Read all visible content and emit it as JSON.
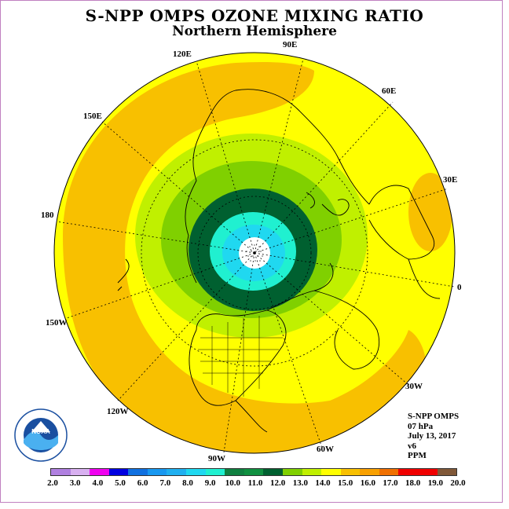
{
  "title": "S-NPP OMPS OZONE MIXING RATIO",
  "subtitle": "Northern Hemisphere",
  "longitude_labels": {
    "e120": "120E",
    "e90": "90E",
    "e60": "60E",
    "e30": "30E",
    "zero": "0",
    "w30": "30W",
    "w60": "60W",
    "w90": "90W",
    "w120": "120W",
    "w150": "150W",
    "d180": "180",
    "e150": "150E"
  },
  "info": {
    "instrument": "S-NPP OMPS",
    "level": "07 hPa",
    "date": "July 13, 2017",
    "version": "v6",
    "units": "PPM"
  },
  "logo_text": "NOAA",
  "colorbar": {
    "ticks": [
      "2.0",
      "3.0",
      "4.0",
      "5.0",
      "6.0",
      "7.0",
      "8.0",
      "9.0",
      "10.0",
      "11.0",
      "12.0",
      "13.0",
      "14.0",
      "15.0",
      "16.0",
      "17.0",
      "18.0",
      "19.0",
      "20.0"
    ],
    "colors": [
      "#b080e0",
      "#d8b0f0",
      "#f000f0",
      "#0000e0",
      "#1070e0",
      "#1898f0",
      "#20b0f0",
      "#20d8f0",
      "#20f0d0",
      "#108040",
      "#109040",
      "#006030",
      "#80d000",
      "#c0f000",
      "#ffff00",
      "#f8c000",
      "#f8a000",
      "#f07000",
      "#f00000",
      "#f00000",
      "#805838"
    ]
  },
  "colors": {
    "outer": "#f8c000",
    "yellow": "#ffff00",
    "lime": "#c0f000",
    "green": "#80d000",
    "dark_green": "#006030",
    "cyan": "#20f0d0",
    "aqua": "#20d8f0"
  }
}
